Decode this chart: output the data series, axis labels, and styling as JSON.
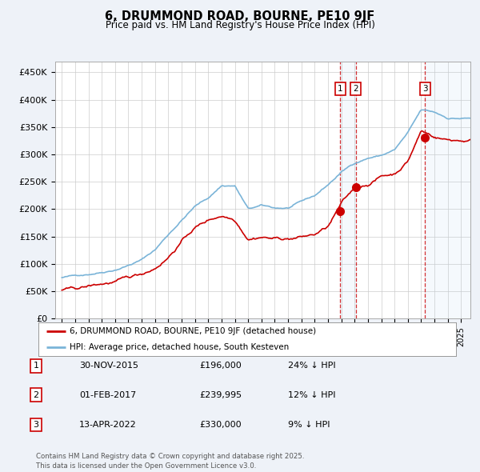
{
  "title": "6, DRUMMOND ROAD, BOURNE, PE10 9JF",
  "subtitle": "Price paid vs. HM Land Registry's House Price Index (HPI)",
  "hpi_label": "HPI: Average price, detached house, South Kesteven",
  "price_label": "6, DRUMMOND ROAD, BOURNE, PE10 9JF (detached house)",
  "hpi_color": "#7ab4d8",
  "price_color": "#cc0000",
  "background_color": "#eef2f8",
  "plot_bg_color": "#ffffff",
  "transactions": [
    {
      "num": 1,
      "date": "30-NOV-2015",
      "year": 2015.92,
      "price": 196000,
      "label": "24% ↓ HPI"
    },
    {
      "num": 2,
      "date": "01-FEB-2017",
      "year": 2017.08,
      "price": 239995,
      "label": "12% ↓ HPI"
    },
    {
      "num": 3,
      "date": "13-APR-2022",
      "year": 2022.29,
      "price": 330000,
      "label": "9% ↓ HPI"
    }
  ],
  "ylabel_ticks": [
    "£0",
    "£50K",
    "£100K",
    "£150K",
    "£200K",
    "£250K",
    "£300K",
    "£350K",
    "£400K",
    "£450K"
  ],
  "ytick_values": [
    0,
    50000,
    100000,
    150000,
    200000,
    250000,
    300000,
    350000,
    400000,
    450000
  ],
  "ylim": [
    0,
    470000
  ],
  "xlim_start": 1994.5,
  "xlim_end": 2025.7,
  "footer": "Contains HM Land Registry data © Crown copyright and database right 2025.\nThis data is licensed under the Open Government Licence v3.0."
}
